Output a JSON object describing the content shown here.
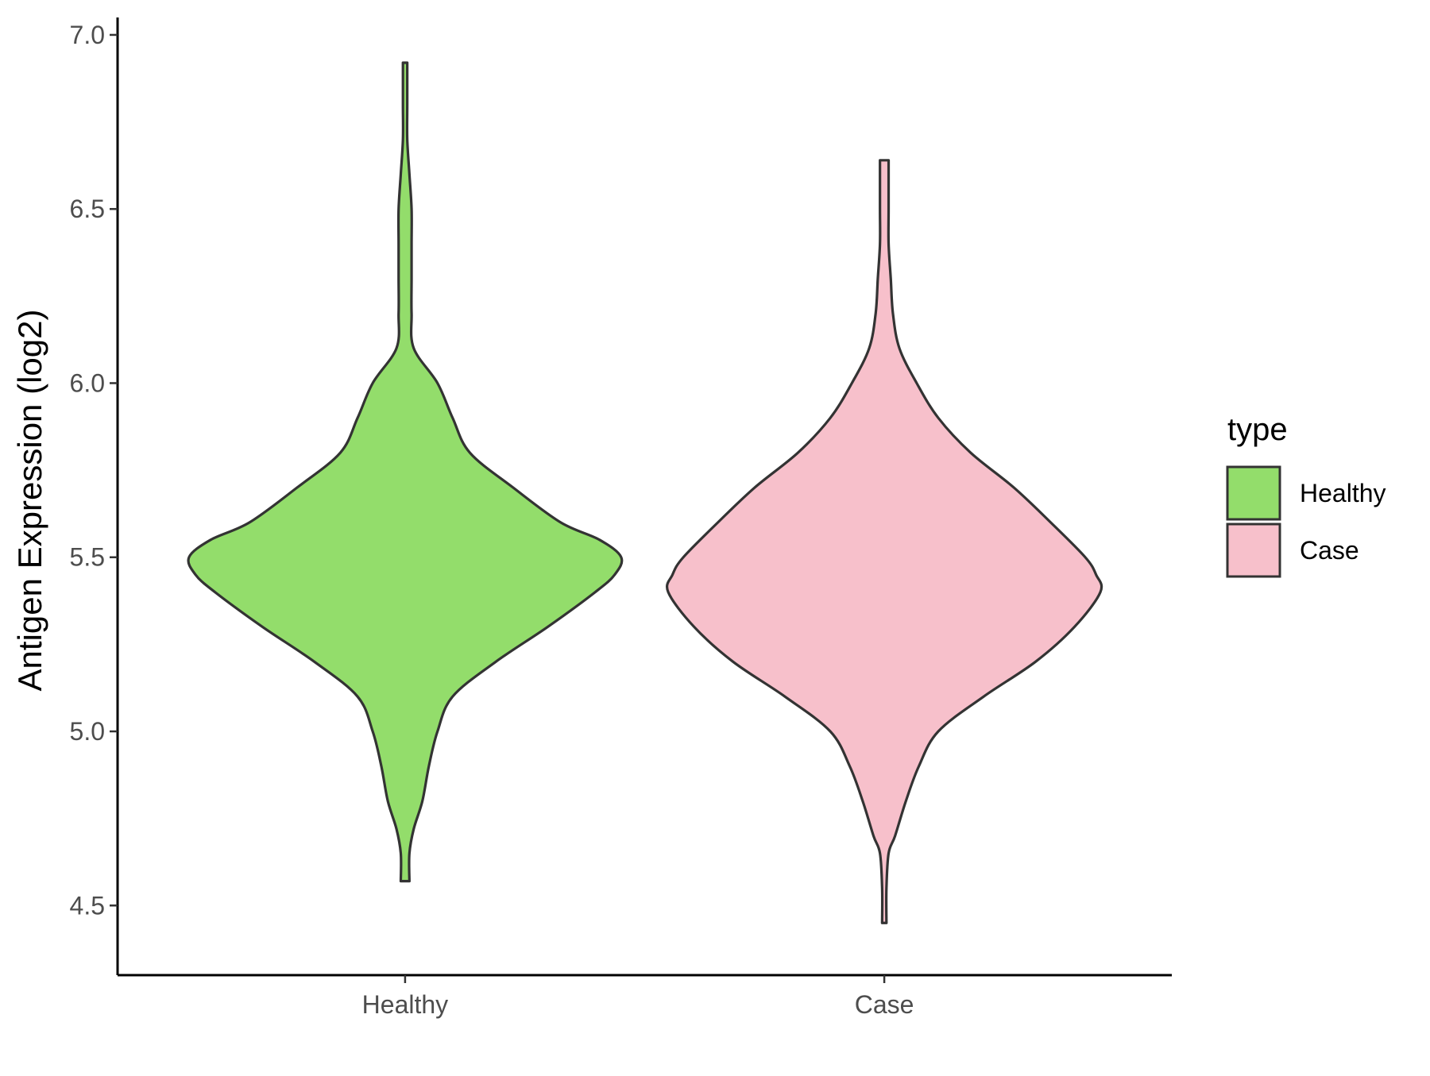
{
  "chart_data": {
    "type": "violin",
    "title": "",
    "xlabel": "",
    "ylabel": "Antigen Expression (log2)",
    "ylim": [
      4.3,
      7.05
    ],
    "yticks": [
      "4.5",
      "5.0",
      "5.5",
      "6.0",
      "6.5",
      "7.0"
    ],
    "ytick_values": [
      4.5,
      5.0,
      5.5,
      6.0,
      6.5,
      7.0
    ],
    "categories": [
      "Healthy",
      "Case"
    ],
    "grid": false,
    "legend": {
      "title": "type",
      "placement": "right",
      "entries": [
        "Healthy",
        "Case"
      ]
    },
    "series": [
      {
        "name": "Healthy",
        "color": "#93dd6b",
        "min": 4.57,
        "max": 6.92,
        "density_profile": [
          [
            4.57,
            0.02
          ],
          [
            4.65,
            0.02
          ],
          [
            4.72,
            0.04
          ],
          [
            4.8,
            0.08
          ],
          [
            4.9,
            0.11
          ],
          [
            5.0,
            0.15
          ],
          [
            5.1,
            0.22
          ],
          [
            5.2,
            0.42
          ],
          [
            5.3,
            0.66
          ],
          [
            5.4,
            0.88
          ],
          [
            5.45,
            0.97
          ],
          [
            5.5,
            1.0
          ],
          [
            5.55,
            0.9
          ],
          [
            5.6,
            0.72
          ],
          [
            5.7,
            0.5
          ],
          [
            5.8,
            0.3
          ],
          [
            5.9,
            0.22
          ],
          [
            6.0,
            0.15
          ],
          [
            6.1,
            0.04
          ],
          [
            6.2,
            0.03
          ],
          [
            6.3,
            0.03
          ],
          [
            6.4,
            0.03
          ],
          [
            6.5,
            0.03
          ],
          [
            6.6,
            0.02
          ],
          [
            6.7,
            0.01
          ],
          [
            6.8,
            0.01
          ],
          [
            6.92,
            0.01
          ]
        ]
      },
      {
        "name": "Case",
        "color": "#f7c0cb",
        "min": 4.45,
        "max": 6.64,
        "density_profile": [
          [
            4.45,
            0.01
          ],
          [
            4.55,
            0.01
          ],
          [
            4.65,
            0.02
          ],
          [
            4.7,
            0.05
          ],
          [
            4.8,
            0.1
          ],
          [
            4.9,
            0.16
          ],
          [
            5.0,
            0.25
          ],
          [
            5.1,
            0.46
          ],
          [
            5.2,
            0.7
          ],
          [
            5.3,
            0.88
          ],
          [
            5.4,
            1.0
          ],
          [
            5.45,
            0.98
          ],
          [
            5.5,
            0.93
          ],
          [
            5.6,
            0.77
          ],
          [
            5.7,
            0.6
          ],
          [
            5.8,
            0.4
          ],
          [
            5.9,
            0.25
          ],
          [
            6.0,
            0.15
          ],
          [
            6.1,
            0.07
          ],
          [
            6.2,
            0.04
          ],
          [
            6.3,
            0.03
          ],
          [
            6.4,
            0.02
          ],
          [
            6.5,
            0.02
          ],
          [
            6.64,
            0.02
          ]
        ]
      }
    ]
  }
}
